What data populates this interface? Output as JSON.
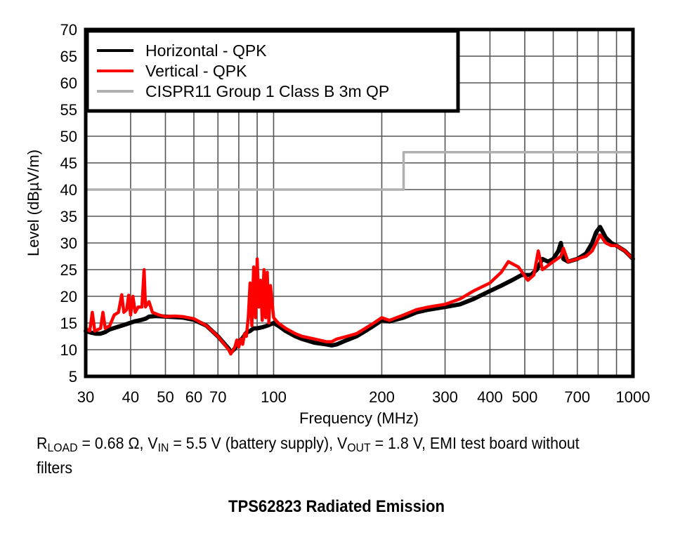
{
  "chart_data": {
    "type": "line",
    "title": "TPS62823 Radiated Emission",
    "xlabel": "Frequency (MHz)",
    "ylabel": "Level (dBµV/m)",
    "xscale": "log",
    "xlim": [
      30,
      1000
    ],
    "ylim": [
      5,
      70
    ],
    "grid": true,
    "legend_position": "top-left",
    "x_ticks": [
      30,
      40,
      50,
      60,
      70,
      100,
      200,
      300,
      400,
      500,
      700,
      1000
    ],
    "x_tick_labels": [
      "30",
      "40",
      "50",
      "60",
      "70",
      "100",
      "200",
      "300",
      "400",
      "500",
      "700",
      "1000"
    ],
    "x_grid": [
      30,
      40,
      50,
      60,
      70,
      80,
      90,
      100,
      200,
      300,
      400,
      500,
      600,
      700,
      800,
      900,
      1000
    ],
    "y_ticks": [
      5,
      10,
      15,
      20,
      25,
      30,
      35,
      40,
      45,
      50,
      55,
      60,
      65,
      70
    ],
    "y_tick_labels": [
      "5",
      "10",
      "15",
      "20",
      "25",
      "30",
      "35",
      "40",
      "45",
      "50",
      "55",
      "60",
      "65",
      "70"
    ],
    "series": [
      {
        "name": "Horizontal - QPK",
        "color": "#000000",
        "x": [
          30,
          31,
          32,
          33,
          34,
          35,
          37,
          39,
          41,
          43,
          44,
          45,
          47,
          50,
          53,
          56,
          60,
          65,
          70,
          75,
          76,
          78,
          80,
          82,
          84,
          86,
          88,
          90,
          93,
          96,
          100,
          103,
          108,
          115,
          120,
          130,
          140,
          145,
          150,
          160,
          170,
          180,
          190,
          200,
          210,
          230,
          250,
          270,
          300,
          330,
          360,
          400,
          430,
          460,
          490,
          520,
          540,
          560,
          580,
          600,
          620,
          630,
          640,
          660,
          700,
          740,
          770,
          790,
          810,
          840,
          870,
          900,
          950,
          1000
        ],
        "y": [
          13.5,
          13.2,
          13,
          13,
          13.3,
          13.8,
          14.3,
          14.8,
          15.3,
          15.6,
          15.8,
          16.2,
          16.3,
          16.2,
          16.1,
          16,
          15.6,
          14.5,
          12.5,
          10.2,
          9.5,
          10.2,
          11.5,
          12.2,
          13.2,
          13.5,
          14,
          14,
          14.2,
          14.5,
          15,
          14.5,
          13.5,
          12.5,
          12,
          11.3,
          11,
          10.8,
          11,
          11.8,
          12.5,
          13.5,
          14.5,
          15.5,
          15.3,
          16,
          17,
          17.5,
          18,
          18.5,
          19.5,
          21,
          22,
          23,
          24,
          24,
          25,
          27,
          26.5,
          27,
          28.5,
          30,
          27,
          26.5,
          27,
          28,
          30,
          32,
          33,
          31,
          30,
          29.5,
          28.5,
          27
        ]
      },
      {
        "name": "Vertical - QPK",
        "color": "#ff0000",
        "x": [
          30,
          30.8,
          31.3,
          31.8,
          32.5,
          33,
          33.5,
          34,
          35,
          36,
          37,
          37.8,
          38.3,
          39,
          39.5,
          40,
          40.6,
          41.2,
          42,
          43,
          43.6,
          44,
          45,
          46,
          48,
          50,
          53,
          56,
          60,
          65,
          70,
          75,
          76,
          78,
          79,
          80,
          81,
          82,
          83,
          84,
          85,
          86,
          87,
          88,
          89,
          90,
          91,
          92,
          93,
          94,
          95,
          96,
          97,
          98,
          100,
          103,
          108,
          115,
          120,
          130,
          140,
          145,
          150,
          160,
          170,
          180,
          190,
          200,
          210,
          230,
          250,
          270,
          300,
          330,
          360,
          400,
          430,
          450,
          480,
          510,
          530,
          545,
          560,
          600,
          630,
          640,
          660,
          700,
          740,
          770,
          790,
          810,
          840,
          870,
          900,
          950,
          1000
        ],
        "y": [
          14,
          13.5,
          17,
          13.5,
          13.8,
          14,
          17,
          14,
          14.5,
          16.5,
          17,
          20.3,
          17,
          17.5,
          20.2,
          16.5,
          20,
          17,
          18,
          18,
          25,
          18,
          19,
          17,
          16.5,
          16.2,
          16.3,
          16.2,
          15.8,
          14.5,
          12.5,
          10,
          9.2,
          10.5,
          11.8,
          10.5,
          12,
          11,
          13,
          12.5,
          16,
          22.5,
          14.5,
          25.5,
          16,
          27,
          18,
          23,
          15.5,
          25,
          16,
          24.5,
          15,
          22,
          16,
          15,
          14,
          13,
          12.5,
          12,
          11.5,
          11.5,
          12,
          12.5,
          13,
          14,
          15,
          16,
          15.5,
          16.5,
          17.5,
          18,
          18.5,
          19.5,
          21,
          22.5,
          24.5,
          26.5,
          25.5,
          23,
          24,
          28.5,
          25,
          26.5,
          27.5,
          29,
          26.5,
          27,
          27.5,
          28.5,
          30,
          31.5,
          30,
          29.5,
          29.5,
          28.5,
          27
        ]
      },
      {
        "name": "CISPR11 Group 1 Class B 3m QP",
        "color": "#b0b0b0",
        "x": [
          30,
          230,
          230,
          1000
        ],
        "y": [
          40,
          40,
          47,
          47
        ]
      }
    ]
  },
  "note": {
    "r_symbol": "R",
    "r_sub": "LOAD",
    "r_value": " = 0.68 Ω, ",
    "vin_symbol": "V",
    "vin_sub": "IN",
    "vin_value": " = 5.5 V (battery supply), ",
    "vout_symbol": "V",
    "vout_sub": "OUT",
    "vout_value": " = 1.8 V, EMI test board without filters"
  }
}
